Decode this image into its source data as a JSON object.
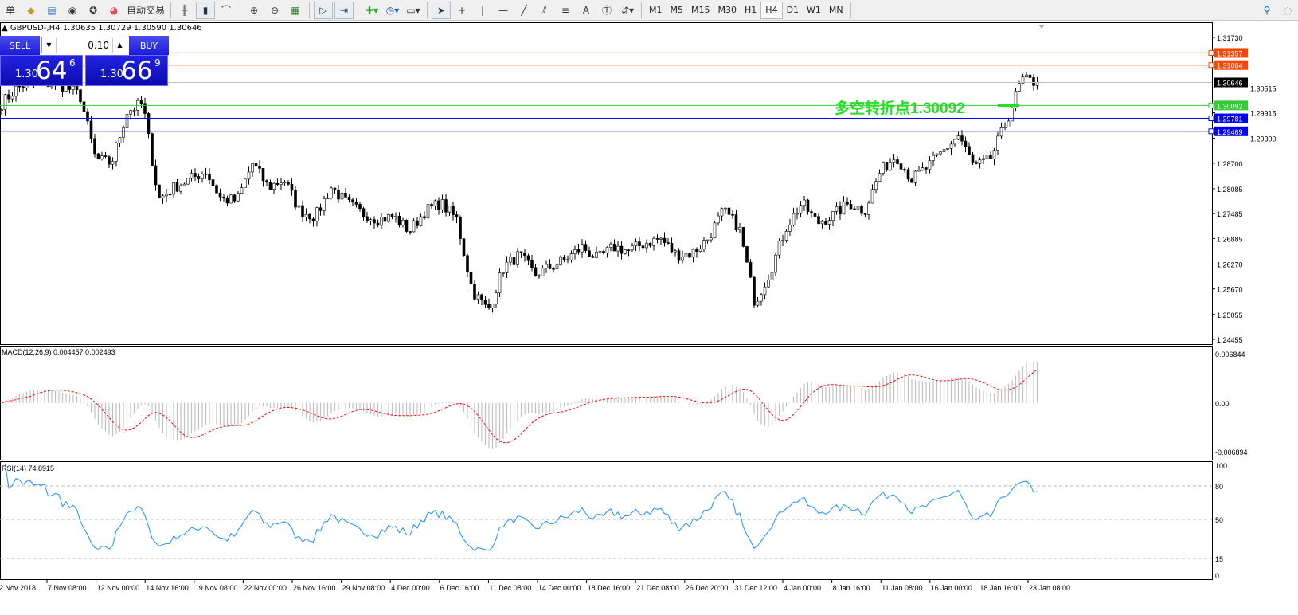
{
  "toolbar": {
    "left_cut_label": "单",
    "auto_trading": "自动交易",
    "timeframes": [
      "M1",
      "M5",
      "M15",
      "M30",
      "H1",
      "H4",
      "D1",
      "W1",
      "MN"
    ],
    "selected_timeframe": "H4",
    "icons": [
      "market-watch-icon",
      "navigator-icon",
      "terminal-icon",
      "signals-icon",
      "auto-trading-icon",
      "bar-chart-icon",
      "candlestick-icon",
      "line-chart-icon",
      "zoom-in-icon",
      "zoom-out-icon",
      "tile-windows-icon",
      "auto-scroll-icon",
      "chart-shift-icon",
      "indicators-icon",
      "periods-icon",
      "templates-icon",
      "cursor-icon",
      "crosshair-icon",
      "vertical-line-icon",
      "horizontal-line-icon",
      "trendline-icon",
      "equidistant-channel-icon",
      "fibonacci-icon",
      "text-icon",
      "text-label-icon",
      "arrows-icon",
      "search-icon",
      "community-icon"
    ]
  },
  "chart": {
    "title": "▲ GBPUSD-,H4  1.30635 1.30729 1.30590 1.30646",
    "annotation": "多空转折点1.30092"
  },
  "trade_panel": {
    "sell": "SELL",
    "buy": "BUY",
    "lot": "0.10",
    "sell_price": {
      "big_prefix": "1.30",
      "main": "64",
      "sup": "6"
    },
    "buy_price": {
      "big_prefix": "1.30",
      "main": "66",
      "sup": "9"
    }
  },
  "chart_data": [
    {
      "type": "candlestick",
      "symbol": "GBPUSD-",
      "timeframe": "H4",
      "ohlc_last": [
        1.30635,
        1.30729,
        1.3059,
        1.30646
      ],
      "ylim": [
        1.24455,
        1.3173
      ],
      "y_ticks": [
        "1.31730",
        "1.30515",
        "1.29915",
        "1.29300",
        "1.28700",
        "1.28085",
        "1.27485",
        "1.26885",
        "1.26270",
        "1.25670",
        "1.25055",
        "1.24455"
      ],
      "close_path": [
        1.3014,
        1.3052,
        1.3062,
        1.3062,
        1.3056,
        1.3033,
        1.2879,
        1.287,
        1.2995,
        1.3014,
        1.2783,
        1.2812,
        1.2831,
        1.2851,
        1.2783,
        1.278,
        1.287,
        1.2812,
        1.2831,
        1.2755,
        1.2741,
        1.2812,
        1.2774,
        1.2749,
        1.2735,
        1.2741,
        1.2707,
        1.2755,
        1.2774,
        1.2735,
        1.2563,
        1.2515,
        1.262,
        1.2649,
        1.2601,
        1.262,
        1.2639,
        1.2668,
        1.2639,
        1.2668,
        1.2659,
        1.2678,
        1.2688,
        1.2649,
        1.2653,
        1.2688,
        1.2755,
        1.2716,
        1.2534,
        1.2611,
        1.2716,
        1.2774,
        1.2726,
        1.2745,
        1.2774,
        1.2755,
        1.2851,
        1.2889,
        1.2831,
        1.286,
        1.2899,
        1.2937,
        1.286,
        1.2879,
        1.2966,
        1.3071,
        1.30646
      ],
      "x_ticks": [
        "2 Nov 2018",
        "7 Nov 08:00",
        "12 Nov 00:00",
        "14 Nov 16:00",
        "19 Nov 08:00",
        "22 Nov 00:00",
        "26 Nov 16:00",
        "29 Nov 08:00",
        "4 Dec 00:00",
        "6 Dec 16:00",
        "11 Dec 08:00",
        "14 Dec 00:00",
        "18 Dec 16:00",
        "21 Dec 08:00",
        "26 Dec 20:00",
        "31 Dec 12:00",
        "4 Jan 00:00",
        "8 Jan 16:00",
        "11 Jan 08:00",
        "16 Jan 00:00",
        "18 Jan 16:00",
        "23 Jan 08:00"
      ],
      "levels": [
        {
          "value": "1.31357",
          "color": "#ff4500"
        },
        {
          "value": "1.31064",
          "color": "#ff4500"
        },
        {
          "value": "1.30646",
          "color": "#000000",
          "line": "#c0c0c0"
        },
        {
          "value": "1.30092",
          "color": "#32cd32"
        },
        {
          "value": "1.29781",
          "color": "#0000ff"
        },
        {
          "value": "1.29469",
          "color": "#0000ff"
        }
      ]
    },
    {
      "type": "macd",
      "label": "MACD(12,26,9) 0.004457 0.002493",
      "ylim": [
        -0.006894,
        0.006844
      ],
      "y_ticks": [
        "0.006844",
        "0.00",
        "-0.006894"
      ],
      "histogram_color": "#c0c0c0",
      "signal_color": "#ff0000"
    },
    {
      "type": "line",
      "label": "RSI(14) 74.8915",
      "ylim": [
        0,
        100
      ],
      "y_ticks": [
        "100",
        "80",
        "50",
        "15",
        "0"
      ],
      "levels": [
        80,
        50,
        15
      ],
      "color": "#1e90ff"
    }
  ]
}
